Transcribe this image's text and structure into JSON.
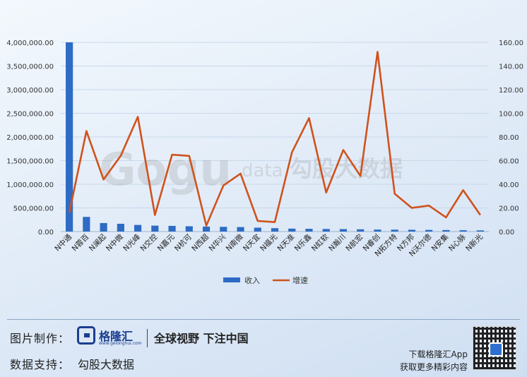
{
  "chart_data": {
    "type": "bar+line",
    "categories": [
      "N中通",
      "N蓉百",
      "N澜起",
      "N中微",
      "N光峰",
      "N交控",
      "N嘉元",
      "N杭可",
      "N西超",
      "N华兴",
      "N南微",
      "N天宜",
      "N福光",
      "N天准",
      "N乐鑫",
      "N虹软",
      "N瀚川",
      "N航宏",
      "N睿创",
      "N拓方特",
      "N方邦",
      "N沃尔德",
      "N安集",
      "N心脉",
      "N新光"
    ],
    "series": [
      {
        "name": "收入",
        "axis": "left",
        "type": "bar",
        "values": [
          4000000,
          310000,
          180000,
          165000,
          140000,
          125000,
          120000,
          112000,
          105000,
          100000,
          95000,
          82000,
          72000,
          62000,
          58000,
          55000,
          52000,
          48000,
          42000,
          40000,
          38000,
          35000,
          32000,
          28000,
          25000
        ]
      },
      {
        "name": "增速",
        "axis": "right",
        "type": "line",
        "values": [
          16,
          85,
          44,
          64,
          97,
          14,
          65,
          64,
          5,
          39,
          49,
          9,
          8,
          67,
          96,
          33,
          69,
          47,
          152,
          32,
          20,
          22,
          12,
          35,
          14
        ]
      }
    ],
    "yleft": {
      "min": 0,
      "max": 4000000,
      "ticks": [
        "0.00",
        "500,000.00",
        "1,000,000.00",
        "1,500,000.00",
        "2,000,000.00",
        "2,500,000.00",
        "3,000,000.00",
        "3,500,000.00",
        "4,000,000.00"
      ]
    },
    "yright": {
      "min": 0,
      "max": 160,
      "ticks": [
        "0.00",
        "20.00",
        "40.00",
        "60.00",
        "80.00",
        "100.00",
        "120.00",
        "140.00",
        "160.00"
      ]
    },
    "legend": "bottom-center",
    "colors": {
      "bar": "#2e6bc4",
      "line": "#d0521c"
    }
  },
  "watermark": {
    "brand": "Gogu",
    "suffix": "data",
    "cn": "勾股大数据"
  },
  "footer": {
    "made_label": "图片制作：",
    "brand_name": "格隆汇",
    "brand_url": "www.gelonghui.com",
    "slogan": "全球视野 下注中国",
    "data_label": "数据支持：",
    "data_source": "勾股大数据",
    "app_line1": "下载格隆汇App",
    "app_line2": "获取更多精彩内容"
  }
}
